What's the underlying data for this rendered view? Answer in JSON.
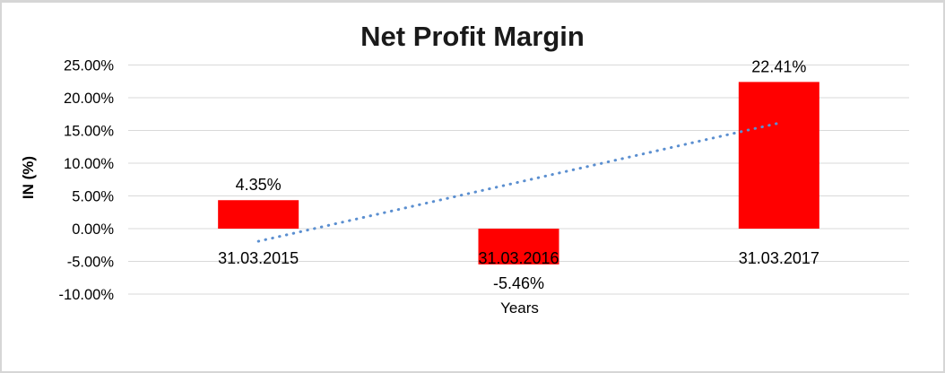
{
  "chart_data": {
    "type": "bar",
    "title": "Net Profit Margin",
    "xlabel": "Years",
    "ylabel": "IN (%)",
    "categories": [
      "31.03.2015",
      "31.03.2016",
      "31.03.2017"
    ],
    "series": [
      {
        "name": "Net Profit Margin",
        "values": [
          4.35,
          -5.46,
          22.41
        ]
      }
    ],
    "data_labels": [
      "4.35%",
      "-5.46%",
      "22.41%"
    ],
    "y_ticks": [
      {
        "label": "25.00%",
        "value": 25
      },
      {
        "label": "20.00%",
        "value": 20
      },
      {
        "label": "15.00%",
        "value": 15
      },
      {
        "label": "10.00%",
        "value": 10
      },
      {
        "label": "5.00%",
        "value": 5
      },
      {
        "label": "0.00%",
        "value": 0
      },
      {
        "label": "-5.00%",
        "value": -5
      },
      {
        "label": "-10.00%",
        "value": -10
      }
    ],
    "ylim": [
      -10,
      25
    ],
    "grid": true,
    "legend": "none",
    "colors": {
      "bar": "#ff0000",
      "trendline": "#5b8fd0",
      "gridline": "#d9d9d9",
      "text": "#000000"
    },
    "trendline": {
      "type": "linear",
      "style": "dotted",
      "fitted_values": [
        -1.93,
        7.1,
        16.13
      ]
    }
  }
}
